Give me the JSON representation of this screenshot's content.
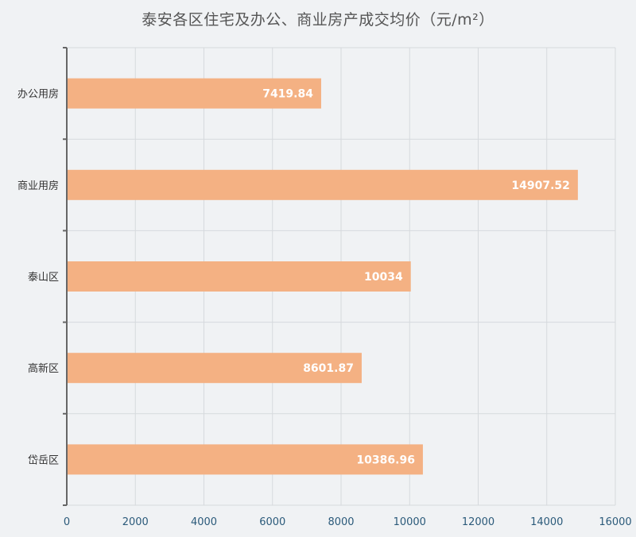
{
  "chart_data": {
    "type": "bar",
    "orientation": "horizontal",
    "title": "泰安各区住宅及办公、商业房产成交均价（元/m²）",
    "categories": [
      "办公用房",
      "商业用房",
      "泰山区",
      "高新区",
      "岱岳区"
    ],
    "values": [
      7419.84,
      14907.52,
      10034,
      8601.87,
      10386.96
    ],
    "value_labels": [
      "7419.84",
      "14907.52",
      "10034",
      "8601.87",
      "10386.96"
    ],
    "xlim": [
      0,
      16000
    ],
    "xticks": [
      0,
      2000,
      4000,
      6000,
      8000,
      10000,
      12000,
      14000,
      16000
    ],
    "grid": true,
    "bar_color": "#f4b183"
  }
}
